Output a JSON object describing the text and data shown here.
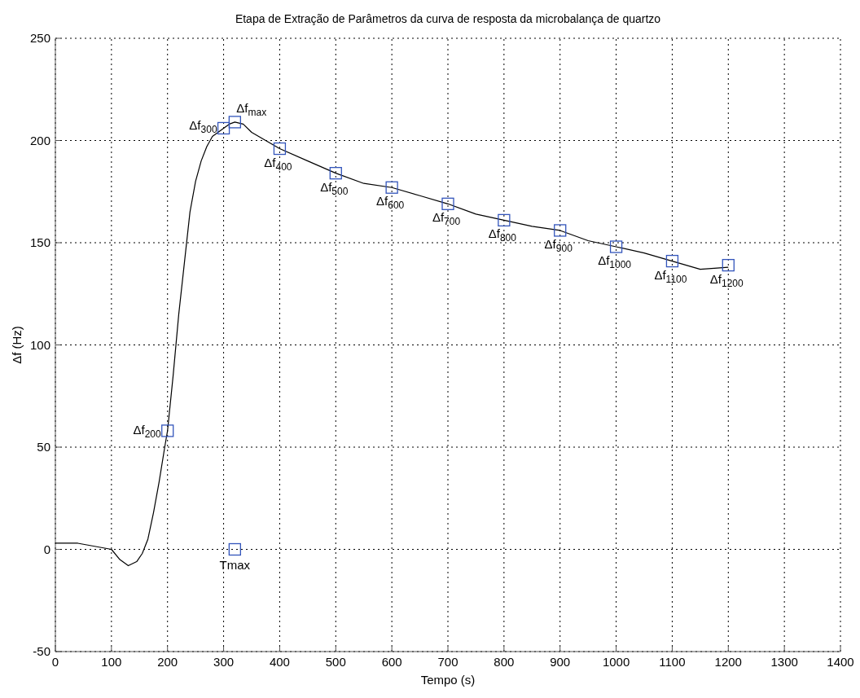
{
  "chart_data": {
    "type": "line",
    "title": "Etapa de Extração de Parâmetros da curva de resposta da microbalança de quartzo",
    "xlabel": "Tempo (s)",
    "ylabel": "Δf (Hz)",
    "xlim": [
      0,
      1400
    ],
    "xticks": [
      0,
      100,
      200,
      300,
      400,
      500,
      600,
      700,
      800,
      900,
      1000,
      1100,
      1200,
      1300,
      1400
    ],
    "ylim": [
      -50,
      250
    ],
    "yticks": [
      -50,
      0,
      50,
      100,
      150,
      200,
      250
    ],
    "grid": true,
    "series": [
      {
        "color": "#000000",
        "line_style": "solid",
        "marker": "none",
        "x": [
          0,
          20,
          40,
          50,
          70,
          100,
          115,
          130,
          145,
          155,
          165,
          175,
          185,
          195,
          200,
          210,
          220,
          230,
          240,
          250,
          260,
          270,
          280,
          290,
          300,
          310,
          320,
          335,
          350,
          375,
          400,
          450,
          500,
          550,
          600,
          650,
          700,
          750,
          800,
          850,
          900,
          950,
          1000,
          1050,
          1100,
          1150,
          1200
        ],
        "values": [
          3,
          3,
          3,
          2.5,
          1.5,
          0,
          -5,
          -8,
          -6,
          -2,
          5,
          18,
          33,
          50,
          58,
          85,
          115,
          140,
          165,
          180,
          190,
          197,
          202,
          204,
          206,
          208,
          209,
          208,
          204,
          200,
          196,
          190,
          184,
          179,
          177,
          173,
          169,
          164,
          161,
          158,
          156,
          151,
          148,
          145,
          141,
          137,
          138
        ]
      },
      {
        "type": "scatter",
        "color": "#3355bb",
        "marker": "square",
        "x": [
          200,
          300,
          320,
          320,
          400,
          500,
          600,
          700,
          800,
          900,
          1000,
          1100,
          1200
        ],
        "values": [
          58,
          206,
          209,
          0,
          196,
          184,
          177,
          169,
          161,
          156,
          148,
          141,
          139
        ]
      }
    ],
    "annotations": [
      {
        "text": "Δf$_{200}$",
        "x": 200,
        "y": 58
      },
      {
        "text": "Δf$_{300}$",
        "x": 300,
        "y": 206
      },
      {
        "text": "Δf$_{max}$",
        "x": 320,
        "y": 209
      },
      {
        "text": "Tmax",
        "x": 320,
        "y": 0
      },
      {
        "text": "Δf$_{400}$",
        "x": 400,
        "y": 196
      },
      {
        "text": "Δf$_{500}$",
        "x": 500,
        "y": 184
      },
      {
        "text": "Δf$_{600}$",
        "x": 600,
        "y": 177
      },
      {
        "text": "Δf$_{700}$",
        "x": 700,
        "y": 169
      },
      {
        "text": "Δf$_{800}$",
        "x": 800,
        "y": 161
      },
      {
        "text": "Δf$_{900}$",
        "x": 900,
        "y": 156
      },
      {
        "text": "Δf$_{1000}$",
        "x": 1000,
        "y": 148
      },
      {
        "text": "Δf$_{1100}$",
        "x": 1100,
        "y": 141
      },
      {
        "text": "Δf$_{1200}$",
        "x": 1200,
        "y": 139
      }
    ]
  }
}
